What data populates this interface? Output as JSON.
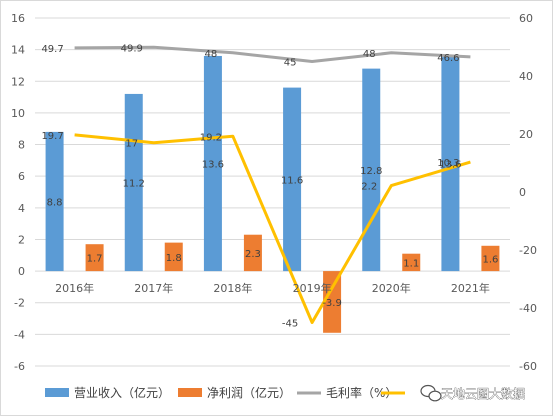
{
  "chart_data": {
    "type": "bar+line",
    "categories": [
      "2016年",
      "2017年",
      "2018年",
      "2019年",
      "2020年",
      "2021年"
    ],
    "y_left": {
      "ticks": [
        16,
        14,
        12,
        10,
        8,
        6,
        4,
        2,
        0,
        -2,
        -4,
        -6
      ],
      "ylim": [
        -6,
        16
      ]
    },
    "y_right": {
      "ticks": [
        60,
        40,
        20,
        0,
        -20,
        -40,
        -60
      ],
      "ylim": [
        -60,
        60
      ]
    },
    "grid": true,
    "legend_position": "bottom",
    "series": [
      {
        "name": "营业收入（亿元）",
        "type": "bar",
        "axis": "left",
        "color": "#5B9BD5",
        "values": [
          8.8,
          11.2,
          13.6,
          11.6,
          12.8,
          13.6
        ]
      },
      {
        "name": "净利润（亿元）",
        "type": "bar",
        "axis": "left",
        "color": "#ED7D31",
        "values": [
          1.7,
          1.8,
          2.3,
          -3.9,
          1.1,
          1.6
        ]
      },
      {
        "name": "毛利率（%）",
        "type": "line",
        "axis": "right",
        "color": "#A5A5A5",
        "values": [
          49.7,
          49.9,
          48,
          45,
          48,
          46.6
        ]
      },
      {
        "name": "",
        "type": "line",
        "axis": "right",
        "color": "#FFC000",
        "values": [
          19.7,
          17,
          19.2,
          -45,
          2.2,
          10.3
        ]
      }
    ]
  },
  "watermark": {
    "text": "天地云图大数据",
    "icon": "wechat-icon"
  }
}
